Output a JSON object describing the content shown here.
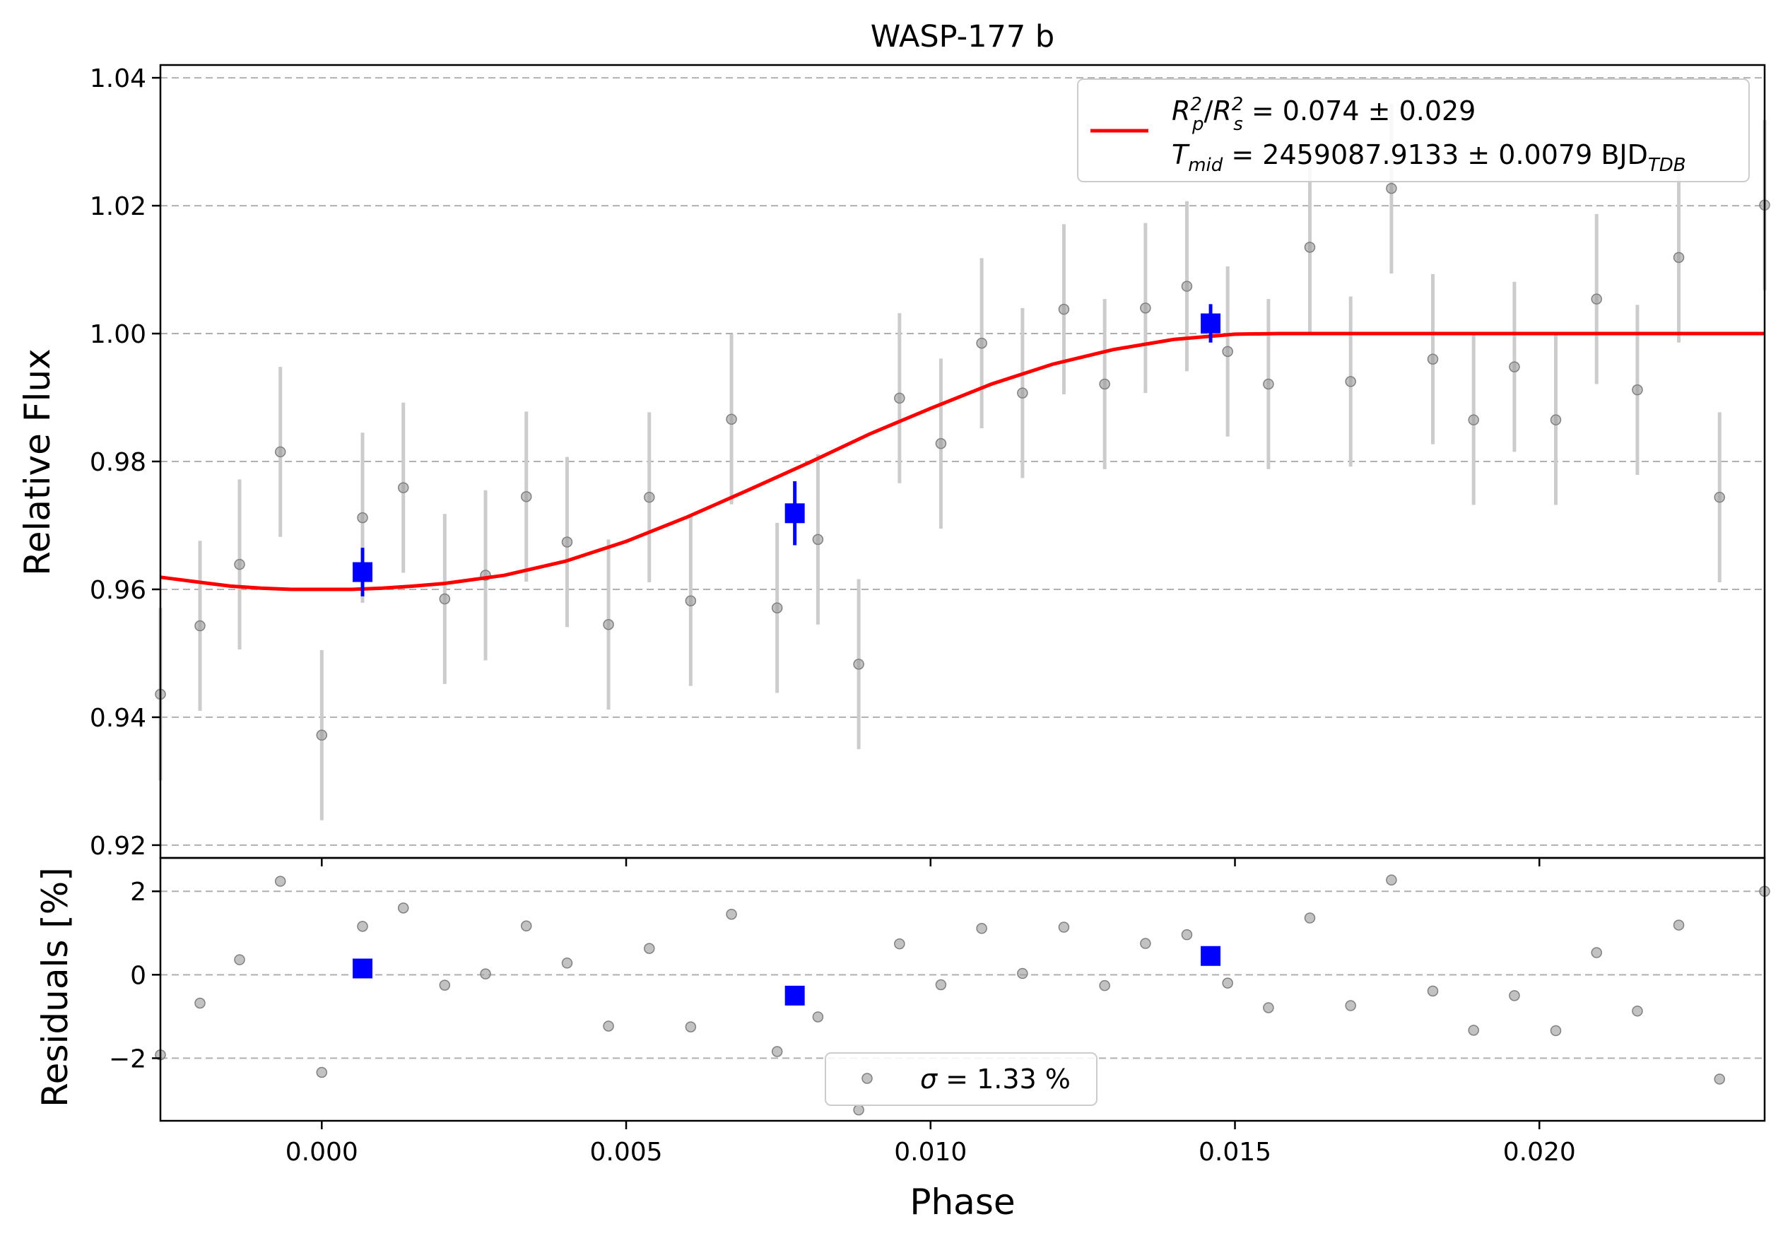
{
  "chart_data": {
    "type": "scatter",
    "title": "WASP-177 b",
    "xlabel": "Phase",
    "xlim": [
      -0.00265,
      0.0237
    ],
    "x_ticks": [
      "0.000",
      "0.005",
      "0.010",
      "0.015",
      "0.020"
    ],
    "x_tick_values": [
      0.0,
      0.005,
      0.01,
      0.015,
      0.02
    ],
    "panels": [
      {
        "name": "light-curve",
        "ylabel": "Relative Flux",
        "ylim": [
          0.918,
          1.042
        ],
        "y_ticks": [
          "0.92",
          "0.94",
          "0.96",
          "0.98",
          "1.00",
          "1.02",
          "1.04"
        ],
        "y_tick_values": [
          0.92,
          0.94,
          0.96,
          0.98,
          1.0,
          1.02,
          1.04
        ],
        "grid": "horizontal dashed",
        "legend": {
          "placement": "top-right",
          "lines": [
            "R_p^2/R_s^2 = 0.074 ± 0.029",
            "T_mid = 2459087.9133 ± 0.0079 BJD_TDB"
          ],
          "line1": {
            "a": "R",
            "a_sub": "p",
            "a_sup": "2",
            "slash": "/",
            "b": "R",
            "b_sub": "s",
            "b_sup": "2",
            "rest": " = 0.074 ± 0.029"
          },
          "line2": {
            "a": "T",
            "a_sub": "mid",
            "rest": " = 2459087.9133 ± 0.0079 BJD",
            "tail_sub": "TDB"
          }
        },
        "model": {
          "color": "#ff0000",
          "x": [
            -0.00265,
            -0.002,
            -0.0015,
            -0.001,
            -0.0005,
            0.0,
            0.0005,
            0.001,
            0.0015,
            0.002,
            0.003,
            0.004,
            0.005,
            0.006,
            0.007,
            0.008,
            0.009,
            0.01,
            0.011,
            0.012,
            0.013,
            0.014,
            0.015,
            0.0157,
            0.0237
          ],
          "y": [
            0.9619,
            0.9611,
            0.9605,
            0.9602,
            0.96,
            0.96,
            0.96,
            0.9602,
            0.9605,
            0.9609,
            0.9622,
            0.9644,
            0.9675,
            0.9713,
            0.9755,
            0.9798,
            0.9843,
            0.9883,
            0.9921,
            0.9952,
            0.9975,
            0.9991,
            0.9999,
            1.0,
            1.0
          ]
        },
        "series": [
          {
            "kind": "unbinned",
            "color": "#999999",
            "points": [
              {
                "x": -0.00265,
                "y": 0.9436,
                "yerr": 0.0135
              },
              {
                "x": -0.002,
                "y": 0.9543,
                "yerr": 0.0133
              },
              {
                "x": -0.00135,
                "y": 0.9639,
                "yerr": 0.0133
              },
              {
                "x": -0.00068,
                "y": 0.9815,
                "yerr": 0.0133
              },
              {
                "x": 0.0,
                "y": 0.9372,
                "yerr": 0.0133
              },
              {
                "x": 0.00067,
                "y": 0.9712,
                "yerr": 0.0133
              },
              {
                "x": 0.00134,
                "y": 0.9759,
                "yerr": 0.0133
              },
              {
                "x": 0.00202,
                "y": 0.9585,
                "yerr": 0.0133
              },
              {
                "x": 0.00269,
                "y": 0.9622,
                "yerr": 0.0133
              },
              {
                "x": 0.00336,
                "y": 0.9745,
                "yerr": 0.0133
              },
              {
                "x": 0.00403,
                "y": 0.9674,
                "yerr": 0.0133
              },
              {
                "x": 0.00471,
                "y": 0.9545,
                "yerr": 0.0133
              },
              {
                "x": 0.00538,
                "y": 0.9744,
                "yerr": 0.0133
              },
              {
                "x": 0.00606,
                "y": 0.9582,
                "yerr": 0.0133
              },
              {
                "x": 0.00673,
                "y": 0.9866,
                "yerr": 0.0133
              },
              {
                "x": 0.00748,
                "y": 0.9571,
                "yerr": 0.0133
              },
              {
                "x": 0.00815,
                "y": 0.9678,
                "yerr": 0.0133
              },
              {
                "x": 0.00882,
                "y": 0.9483,
                "yerr": 0.0133
              },
              {
                "x": 0.00949,
                "y": 0.9899,
                "yerr": 0.0133
              },
              {
                "x": 0.01017,
                "y": 0.9828,
                "yerr": 0.0133
              },
              {
                "x": 0.01084,
                "y": 0.9985,
                "yerr": 0.0133
              },
              {
                "x": 0.01151,
                "y": 0.9907,
                "yerr": 0.0133
              },
              {
                "x": 0.01219,
                "y": 1.0038,
                "yerr": 0.0133
              },
              {
                "x": 0.01286,
                "y": 0.9921,
                "yerr": 0.0133
              },
              {
                "x": 0.01353,
                "y": 1.004,
                "yerr": 0.0133
              },
              {
                "x": 0.01421,
                "y": 1.0074,
                "yerr": 0.0133
              },
              {
                "x": 0.01488,
                "y": 0.9972,
                "yerr": 0.0133
              },
              {
                "x": 0.01555,
                "y": 0.9921,
                "yerr": 0.0133
              },
              {
                "x": 0.01623,
                "y": 1.0135,
                "yerr": 0.0133
              },
              {
                "x": 0.0169,
                "y": 0.9925,
                "yerr": 0.0133
              },
              {
                "x": 0.01757,
                "y": 1.0227,
                "yerr": 0.0133
              },
              {
                "x": 0.01825,
                "y": 0.996,
                "yerr": 0.0133
              },
              {
                "x": 0.01892,
                "y": 0.9865,
                "yerr": 0.0133
              },
              {
                "x": 0.01959,
                "y": 0.9948,
                "yerr": 0.0133
              },
              {
                "x": 0.02027,
                "y": 0.9865,
                "yerr": 0.0133
              },
              {
                "x": 0.02094,
                "y": 1.0054,
                "yerr": 0.0133
              },
              {
                "x": 0.02161,
                "y": 0.9912,
                "yerr": 0.0133
              },
              {
                "x": 0.02229,
                "y": 1.0119,
                "yerr": 0.0133
              },
              {
                "x": 0.02296,
                "y": 0.9744,
                "yerr": 0.0133
              },
              {
                "x": 0.0237,
                "y": 1.0201,
                "yerr": 0.0133
              }
            ]
          },
          {
            "kind": "binned",
            "color": "#0000ff",
            "points": [
              {
                "x": 0.00067,
                "y": 0.9627,
                "yerr": 0.0038
              },
              {
                "x": 0.00777,
                "y": 0.9719,
                "yerr": 0.005
              },
              {
                "x": 0.0146,
                "y": 1.0016,
                "yerr": 0.003
              }
            ]
          }
        ]
      },
      {
        "name": "residuals",
        "ylabel": "Residuals [%]",
        "ylim": [
          -3.5,
          2.8
        ],
        "y_ticks": [
          "−2",
          "0",
          "2"
        ],
        "y_tick_values": [
          -2,
          0,
          2
        ],
        "grid": "horizontal dashed",
        "legend": {
          "placement": "bottom-center",
          "label": "σ = 1.33 %",
          "label_parts": {
            "sym": "σ",
            "rest": " = 1.33 %"
          }
        },
        "series": [
          {
            "kind": "unbinned",
            "color": "#999999",
            "x": [
              -0.00265,
              -0.002,
              -0.00135,
              -0.00068,
              0.0,
              0.00067,
              0.00134,
              0.00202,
              0.00269,
              0.00336,
              0.00403,
              0.00471,
              0.00538,
              0.00606,
              0.00673,
              0.00748,
              0.00815,
              0.00882,
              0.00949,
              0.01017,
              0.01084,
              0.01151,
              0.01219,
              0.01286,
              0.01353,
              0.01421,
              0.01488,
              0.01555,
              0.01623,
              0.0169,
              0.01757,
              0.01825,
              0.01892,
              0.01959,
              0.02027,
              0.02094,
              0.02161,
              0.02229,
              0.02296,
              0.0237
            ],
            "y": [
              -1.92,
              -0.68,
              0.36,
              2.24,
              -2.34,
              1.16,
              1.6,
              -0.25,
              0.02,
              1.17,
              0.28,
              -1.23,
              0.63,
              -1.25,
              1.45,
              -1.84,
              -1.01,
              -3.24,
              0.74,
              -0.24,
              1.11,
              0.03,
              1.14,
              -0.26,
              0.75,
              0.96,
              -0.2,
              -0.79,
              1.36,
              -0.74,
              2.27,
              -0.39,
              -1.33,
              -0.5,
              -1.34,
              0.53,
              -0.87,
              1.19,
              -2.5,
              2.0
            ]
          },
          {
            "kind": "binned",
            "color": "#0000ff",
            "x": [
              0.00067,
              0.00777,
              0.0146
            ],
            "y": [
              0.15,
              -0.5,
              0.45
            ]
          }
        ]
      }
    ]
  }
}
